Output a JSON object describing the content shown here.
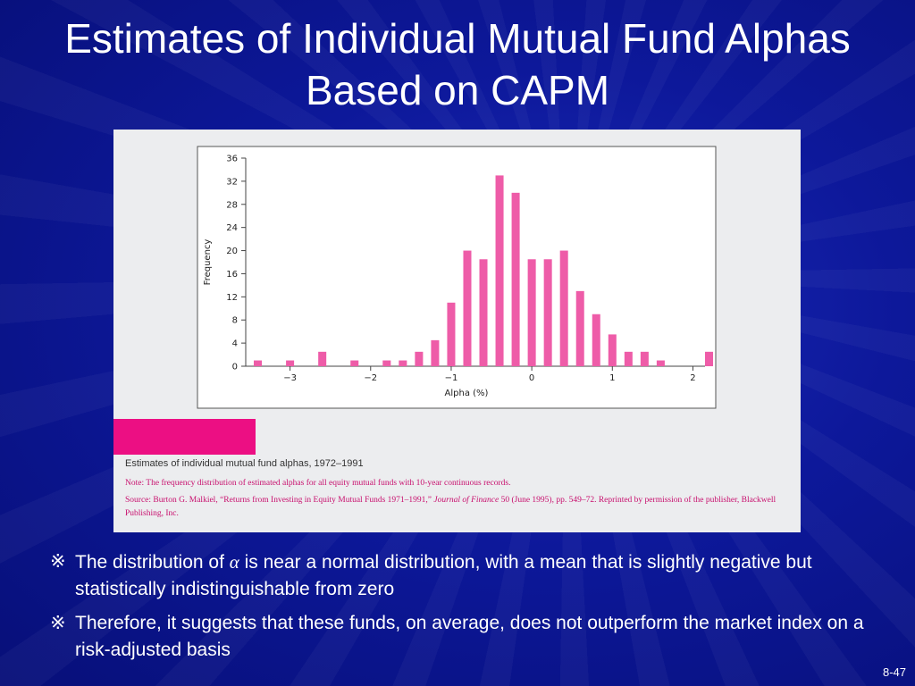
{
  "slide": {
    "title_line1": "Estimates of Individual Mutual Fund Alphas",
    "title_line2": "Based on CAPM",
    "page_number": "8-47"
  },
  "figure": {
    "caption_title": "Estimates of individual mutual fund alphas, 1972–1991",
    "note": "Note: The frequency distribution of estimated alphas for all equity mutual funds with 10-year continuous records.",
    "source_prefix": "Source: Burton G. Malkiel, “Returns from Investing in Equity Mutual Funds 1971–1991,” ",
    "source_journal": "Journal of Finance",
    "source_suffix": " 50 (June 1995), pp. 549–72. Reprinted by permission of the publisher, Blackwell Publishing, Inc.",
    "accent_color": "#ec0f83"
  },
  "bullets": [
    {
      "mark": "※",
      "text_before": "The distribution of ",
      "symbol": "α",
      "text_after": " is near a normal distribution, with a mean that is slightly negative but statistically indistinguishable from zero"
    },
    {
      "mark": "※",
      "text": "Therefore, it suggests that these funds, on average, does not outperform the market index on a risk-adjusted basis"
    }
  ],
  "chart_data": {
    "type": "bar",
    "xlabel": "Alpha (%)",
    "ylabel": "Frequency",
    "xlim": [
      -3.55,
      2.15
    ],
    "ylim": [
      0,
      36
    ],
    "yticks": [
      0,
      4,
      8,
      12,
      16,
      20,
      24,
      28,
      32,
      36
    ],
    "xticks": [
      -3,
      -2,
      -1,
      0,
      1,
      2
    ],
    "xtick_labels": [
      "−3",
      "−2",
      "−1",
      "0",
      "1",
      "2"
    ],
    "bar_color": "#ee5ca8",
    "grid": false,
    "bar_width": 0.1,
    "x": [
      -3.4,
      -3.0,
      -2.6,
      -2.2,
      -1.8,
      -1.6,
      -1.4,
      -1.2,
      -1.0,
      -0.8,
      -0.6,
      -0.4,
      -0.2,
      0.0,
      0.2,
      0.4,
      0.6,
      0.8,
      1.0,
      1.2,
      1.4,
      1.6,
      1.8,
      2.2
    ],
    "values": [
      1,
      1,
      2.5,
      1,
      1,
      1,
      2.5,
      4.5,
      11,
      20,
      18.5,
      33,
      30,
      18.5,
      18.5,
      20,
      13,
      9,
      5.5,
      2.5,
      2.5,
      1,
      0,
      2.5
    ]
  }
}
